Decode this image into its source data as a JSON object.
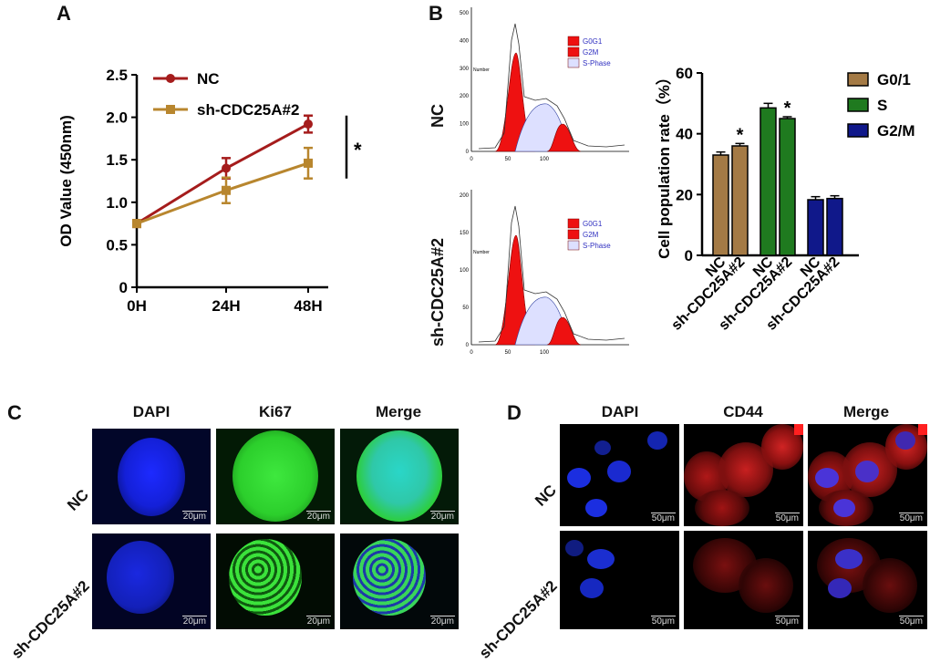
{
  "panels": {
    "A": {
      "letter": "A",
      "significance": "*",
      "chart_data": {
        "type": "line",
        "x": [
          "0H",
          "24H",
          "48H"
        ],
        "ylabel": "OD Value (450nm)",
        "ylim": [
          0,
          2.5
        ],
        "yticks": [
          "0",
          "0.5",
          "1.0",
          "1.5",
          "2.0",
          "2.5"
        ],
        "series": [
          {
            "name": "NC",
            "color": "#a51c1c",
            "values": [
              0.75,
              1.4,
              1.92
            ],
            "errors": [
              0.04,
              0.12,
              0.1
            ]
          },
          {
            "name": "sh-CDC25A#2",
            "color": "#b8862e",
            "values": [
              0.75,
              1.14,
              1.46
            ],
            "errors": [
              0.04,
              0.15,
              0.18
            ]
          }
        ]
      }
    },
    "B": {
      "letter": "B",
      "histograms": [
        {
          "row_label": "NC",
          "y_axis_title": "Number",
          "yticks": [
            "0",
            "100",
            "200",
            "300",
            "400",
            "500"
          ],
          "xticks": [
            "0",
            "50",
            "100"
          ],
          "legend": [
            "G0G1",
            "G2M",
            "S-Phase"
          ]
        },
        {
          "row_label": "sh-CDC25A#2",
          "y_axis_title": "Number",
          "yticks": [
            "0",
            "50",
            "100",
            "150",
            "200"
          ],
          "xticks": [
            "0",
            "50",
            "100"
          ],
          "legend": [
            "G0G1",
            "G2M",
            "S-Phase"
          ]
        }
      ],
      "chart_data": {
        "type": "bar",
        "ylabel": "Cell population rate（%）",
        "ylim": [
          0,
          60
        ],
        "yticks": [
          "0",
          "20",
          "40",
          "60"
        ],
        "groups": [
          {
            "name": "G0/1",
            "color": "#a47a45",
            "categories": [
              "NC",
              "sh-CDC25A#2"
            ],
            "values": [
              33,
              36
            ],
            "errors": [
              1.0,
              0.8
            ],
            "significance": [
              "",
              "*"
            ]
          },
          {
            "name": "S",
            "color": "#1f7a1f",
            "categories": [
              "NC",
              "sh-CDC25A#2"
            ],
            "values": [
              48.5,
              45
            ],
            "errors": [
              1.5,
              0.6
            ],
            "significance": [
              "",
              "*"
            ]
          },
          {
            "name": "G2/M",
            "color": "#10188a",
            "categories": [
              "NC",
              "sh-CDC25A#2"
            ],
            "values": [
              18.3,
              18.7
            ],
            "errors": [
              1.0,
              0.9
            ],
            "significance": [
              "",
              ""
            ]
          }
        ]
      }
    },
    "C": {
      "letter": "C",
      "columns": [
        "DAPI",
        "Ki67",
        "Merge"
      ],
      "rows": [
        "NC",
        "sh-CDC25A#2"
      ],
      "scale_bar": "20μm"
    },
    "D": {
      "letter": "D",
      "columns": [
        "DAPI",
        "CD44",
        "Merge"
      ],
      "rows": [
        "NC",
        "sh-CDC25A#2"
      ],
      "scale_bar": "50μm"
    }
  }
}
